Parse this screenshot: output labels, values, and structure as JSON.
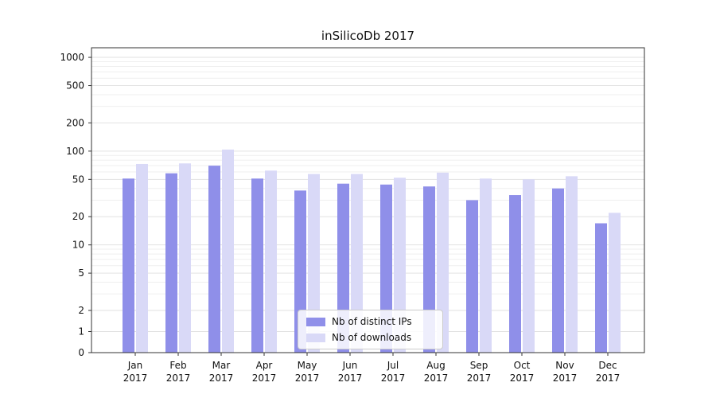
{
  "chart": {
    "title": "inSilicoDb 2017",
    "legend": {
      "item1": "Nb of distinct IPs",
      "item2": "Nb of downloads"
    }
  },
  "chart_data": {
    "type": "bar",
    "title": "inSilicoDb 2017",
    "categories": [
      "Jan 2017",
      "Feb 2017",
      "Mar 2017",
      "Apr 2017",
      "May 2017",
      "Jun 2017",
      "Jul 2017",
      "Aug 2017",
      "Sep 2017",
      "Oct 2017",
      "Nov 2017",
      "Dec 2017"
    ],
    "series": [
      {
        "name": "Nb of distinct IPs",
        "color": "#8f8fe9",
        "values": [
          51,
          58,
          70,
          51,
          38,
          45,
          44,
          42,
          30,
          34,
          40,
          17
        ]
      },
      {
        "name": "Nb of downloads",
        "color": "#d9d9f7",
        "values": [
          73,
          74,
          104,
          62,
          57,
          57,
          52,
          59,
          51,
          50,
          54,
          22
        ]
      }
    ],
    "yscale": "symlog",
    "yticks": [
      0,
      1,
      2,
      5,
      10,
      20,
      50,
      100,
      200,
      500,
      1000
    ],
    "ylim": [
      0,
      1000
    ],
    "grid": true,
    "legend_position": "lower center",
    "colors": {
      "series1": "#8f8fe9",
      "series2": "#d9d9f7",
      "grid_major": "#e2e2e2",
      "grid_minor": "#efefef",
      "spine": "#333333"
    }
  }
}
